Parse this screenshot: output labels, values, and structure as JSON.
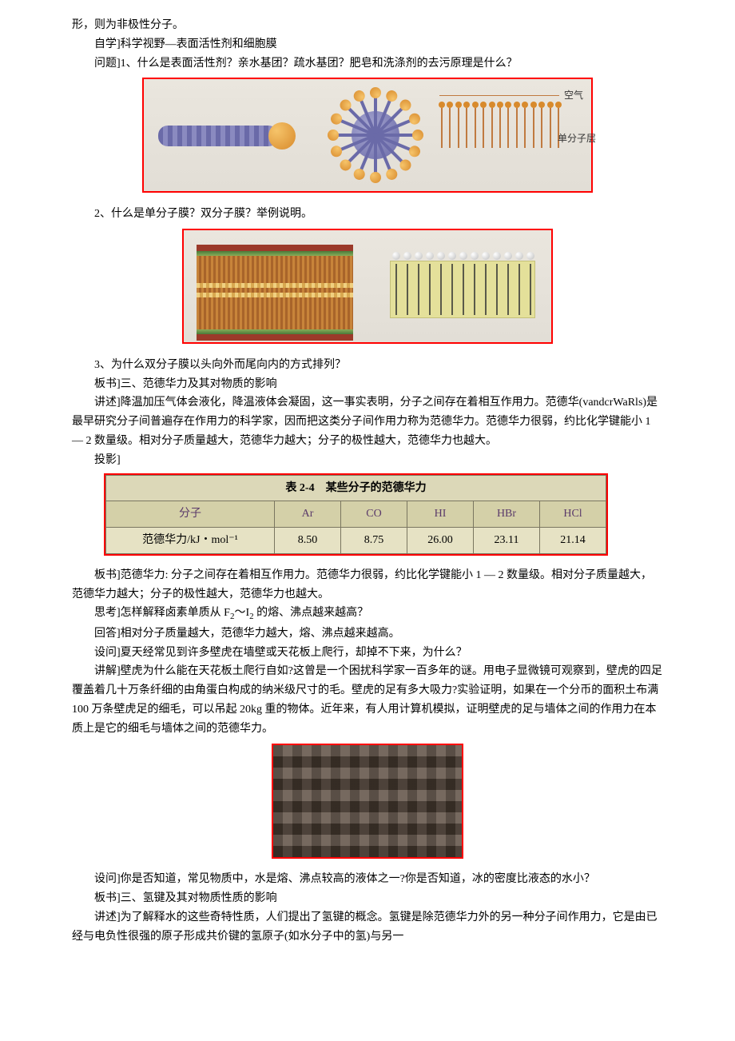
{
  "p1": "形，则为非极性分子。",
  "p2": "自学]科学视野—表面活性剂和细胞膜",
  "p3": "问题]1、什么是表面活性剂？亲水基团？疏水基团？肥皂和洗涤剂的去污原理是什么？",
  "fig1": {
    "label_air": "空气",
    "label_mono": "单分子层",
    "mono_count": 15,
    "ray_count": 16,
    "colors": {
      "border": "#ff0000",
      "head": "#d88a2c",
      "rod": "#6a6aa8"
    }
  },
  "p4": "2、什么是单分子膜？双分子膜？举例说明。",
  "fig2": {
    "mono_count": 13
  },
  "p5": "3、为什么双分子膜以头向外而尾向内的方式排列？",
  "p6": "板书]三、范德华力及其对物质的影响",
  "p7": "讲述]降温加压气体会液化，降温液体会凝固，这一事实表明，分子之间存在着相互作用力。范德华(vandcrWaRls)是最早研究分子间普遍存在作用力的科学家，因而把这类分子间作用力称为范德华力。范德华力很弱，约比化学键能小 1 — 2 数量级。相对分子质量越大，范德华力越大；分子的极性越大，范德华力也越大。",
  "p8": "投影]",
  "table": {
    "title": "表 2-4　某些分子的范德华力",
    "row_head": "分子",
    "row_label": "范德华力/kJ・mol⁻¹",
    "cols": [
      "Ar",
      "CO",
      "HI",
      "HBr",
      "HCl"
    ],
    "vals": [
      "8.50",
      "8.75",
      "26.00",
      "23.11",
      "21.14"
    ],
    "colors": {
      "border": "#ff0000",
      "header_bg": "#d4d0a8",
      "cell_bg": "#e6e2c4"
    }
  },
  "p9": "板书]范德华力: 分子之间存在着相互作用力。范德华力很弱，约比化学键能小 1 — 2 数量级。相对分子质量越大，范德华力越大；分子的极性越大，范德华力也越大。",
  "p10a": "思考]怎样解释卤素单质从 F",
  "p10b": "～I",
  "p10c": " 的熔、沸点越来越高？",
  "p11": "回答]相对分子质量越大，范德华力越大，熔、沸点越来越高。",
  "p12": "设问]夏天经常见到许多壁虎在墙壁或天花板上爬行，却掉不下来，为什么？",
  "p13": "讲解]壁虎为什么能在天花板土爬行自如?这曾是一个困扰科学家一百多年的谜。用电子显微镜可观察到，壁虎的四足覆盖着几十万条纤细的由角蛋白构成的纳米级尺寸的毛。壁虎的足有多大吸力?实验证明，如果在一个分币的面积土布满 100 万条壁虎足的细毛，可以吊起 20kg 重的物体。近年来，有人用计算机模拟，证明壁虎的足与墙体之间的作用力在本质上是它的细毛与墙体之间的范德华力。",
  "p14": "设问]你是否知道，常见物质中，水是熔、沸点较高的液体之一?你是否知道，冰的密度比液态的水小？",
  "p15": "板书]三、氢键及其对物质性质的影响",
  "p16": "讲述]为了解释水的这些奇特性质，人们提出了氢键的概念。氢键是除范德华力外的另一种分子间作用力，它是由已经与电负性很强的原子形成共价键的氢原子(如水分子中的氢)与另一"
}
